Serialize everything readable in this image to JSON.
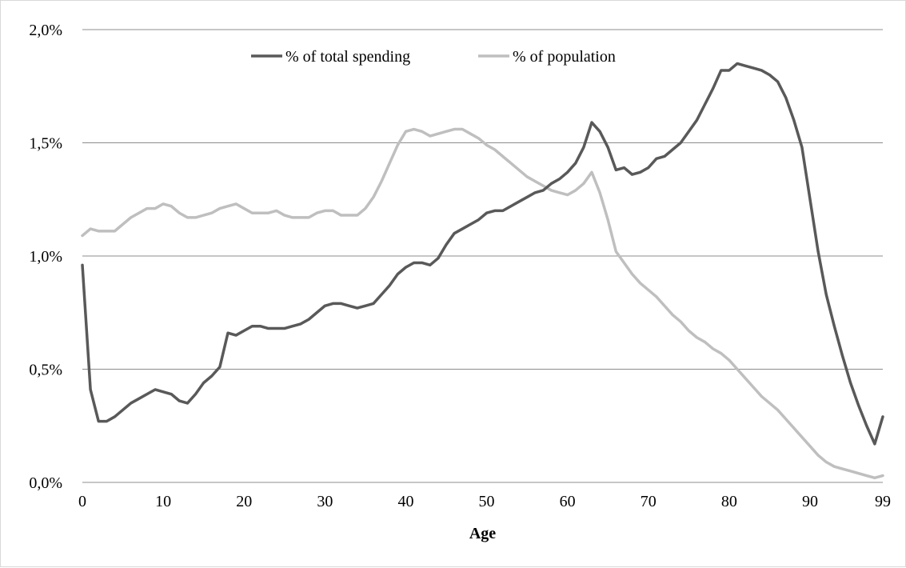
{
  "chart_data": {
    "type": "line",
    "title": "",
    "xlabel": "Age",
    "ylabel": "",
    "xlim": [
      0,
      99
    ],
    "ylim": [
      0,
      0.02
    ],
    "x_ticks": [
      0,
      10,
      20,
      30,
      40,
      50,
      60,
      70,
      80,
      90,
      99
    ],
    "x_tick_labels": [
      "0",
      "10",
      "20",
      "30",
      "40",
      "50",
      "60",
      "70",
      "80",
      "90",
      "99"
    ],
    "y_ticks": [
      0,
      0.005,
      0.01,
      0.015,
      0.02
    ],
    "y_tick_labels": [
      "0,0%",
      "0,5%",
      "1,0%",
      "1,5%",
      "2,0%"
    ],
    "grid": "horizontal",
    "legend_position": "top-center",
    "x": [
      0,
      1,
      2,
      3,
      4,
      5,
      6,
      7,
      8,
      9,
      10,
      11,
      12,
      13,
      14,
      15,
      16,
      17,
      18,
      19,
      20,
      21,
      22,
      23,
      24,
      25,
      26,
      27,
      28,
      29,
      30,
      31,
      32,
      33,
      34,
      35,
      36,
      37,
      38,
      39,
      40,
      41,
      42,
      43,
      44,
      45,
      46,
      47,
      48,
      49,
      50,
      51,
      52,
      53,
      54,
      55,
      56,
      57,
      58,
      59,
      60,
      61,
      62,
      63,
      64,
      65,
      66,
      67,
      68,
      69,
      70,
      71,
      72,
      73,
      74,
      75,
      76,
      77,
      78,
      79,
      80,
      81,
      82,
      83,
      84,
      85,
      86,
      87,
      88,
      89,
      90,
      91,
      92,
      93,
      94,
      95,
      96,
      97,
      98,
      99
    ],
    "series": [
      {
        "name": "% of total spending",
        "color": "#595959",
        "values": [
          0.0096,
          0.0041,
          0.0027,
          0.0027,
          0.0029,
          0.0032,
          0.0035,
          0.0037,
          0.0039,
          0.0041,
          0.004,
          0.0039,
          0.0036,
          0.0035,
          0.0039,
          0.0044,
          0.0047,
          0.0051,
          0.0066,
          0.0065,
          0.0067,
          0.0069,
          0.0069,
          0.0068,
          0.0068,
          0.0068,
          0.0069,
          0.007,
          0.0072,
          0.0075,
          0.0078,
          0.0079,
          0.0079,
          0.0078,
          0.0077,
          0.0078,
          0.0079,
          0.0083,
          0.0087,
          0.0092,
          0.0095,
          0.0097,
          0.0097,
          0.0096,
          0.0099,
          0.0105,
          0.011,
          0.0112,
          0.0114,
          0.0116,
          0.0119,
          0.012,
          0.012,
          0.0122,
          0.0124,
          0.0126,
          0.0128,
          0.0129,
          0.0132,
          0.0134,
          0.0137,
          0.0141,
          0.0148,
          0.0159,
          0.0155,
          0.0148,
          0.0138,
          0.0139,
          0.0136,
          0.0137,
          0.0139,
          0.0143,
          0.0144,
          0.0147,
          0.015,
          0.0155,
          0.016,
          0.0167,
          0.0174,
          0.0182,
          0.0182,
          0.0185,
          0.0184,
          0.0183,
          0.0182,
          0.018,
          0.0177,
          0.017,
          0.016,
          0.0148,
          0.0125,
          0.0102,
          0.0083,
          0.0069,
          0.0056,
          0.0044,
          0.0034,
          0.0025,
          0.0017,
          0.0029
        ]
      },
      {
        "name": "% of population",
        "color": "#bfbfbf",
        "values": [
          0.0109,
          0.0112,
          0.0111,
          0.0111,
          0.0111,
          0.0114,
          0.0117,
          0.0119,
          0.0121,
          0.0121,
          0.0123,
          0.0122,
          0.0119,
          0.0117,
          0.0117,
          0.0118,
          0.0119,
          0.0121,
          0.0122,
          0.0123,
          0.0121,
          0.0119,
          0.0119,
          0.0119,
          0.012,
          0.0118,
          0.0117,
          0.0117,
          0.0117,
          0.0119,
          0.012,
          0.012,
          0.0118,
          0.0118,
          0.0118,
          0.0121,
          0.0126,
          0.0133,
          0.0141,
          0.0149,
          0.0155,
          0.0156,
          0.0155,
          0.0153,
          0.0154,
          0.0155,
          0.0156,
          0.0156,
          0.0154,
          0.0152,
          0.0149,
          0.0147,
          0.0144,
          0.0141,
          0.0138,
          0.0135,
          0.0133,
          0.0131,
          0.0129,
          0.0128,
          0.0127,
          0.0129,
          0.0132,
          0.0137,
          0.0128,
          0.0116,
          0.0102,
          0.0097,
          0.0092,
          0.0088,
          0.0085,
          0.0082,
          0.0078,
          0.0074,
          0.0071,
          0.0067,
          0.0064,
          0.0062,
          0.0059,
          0.0057,
          0.0054,
          0.005,
          0.0046,
          0.0042,
          0.0038,
          0.0035,
          0.0032,
          0.0028,
          0.0024,
          0.002,
          0.0016,
          0.0012,
          0.0009,
          0.0007,
          0.0006,
          0.0005,
          0.0004,
          0.0003,
          0.0002,
          0.0003
        ]
      }
    ]
  }
}
